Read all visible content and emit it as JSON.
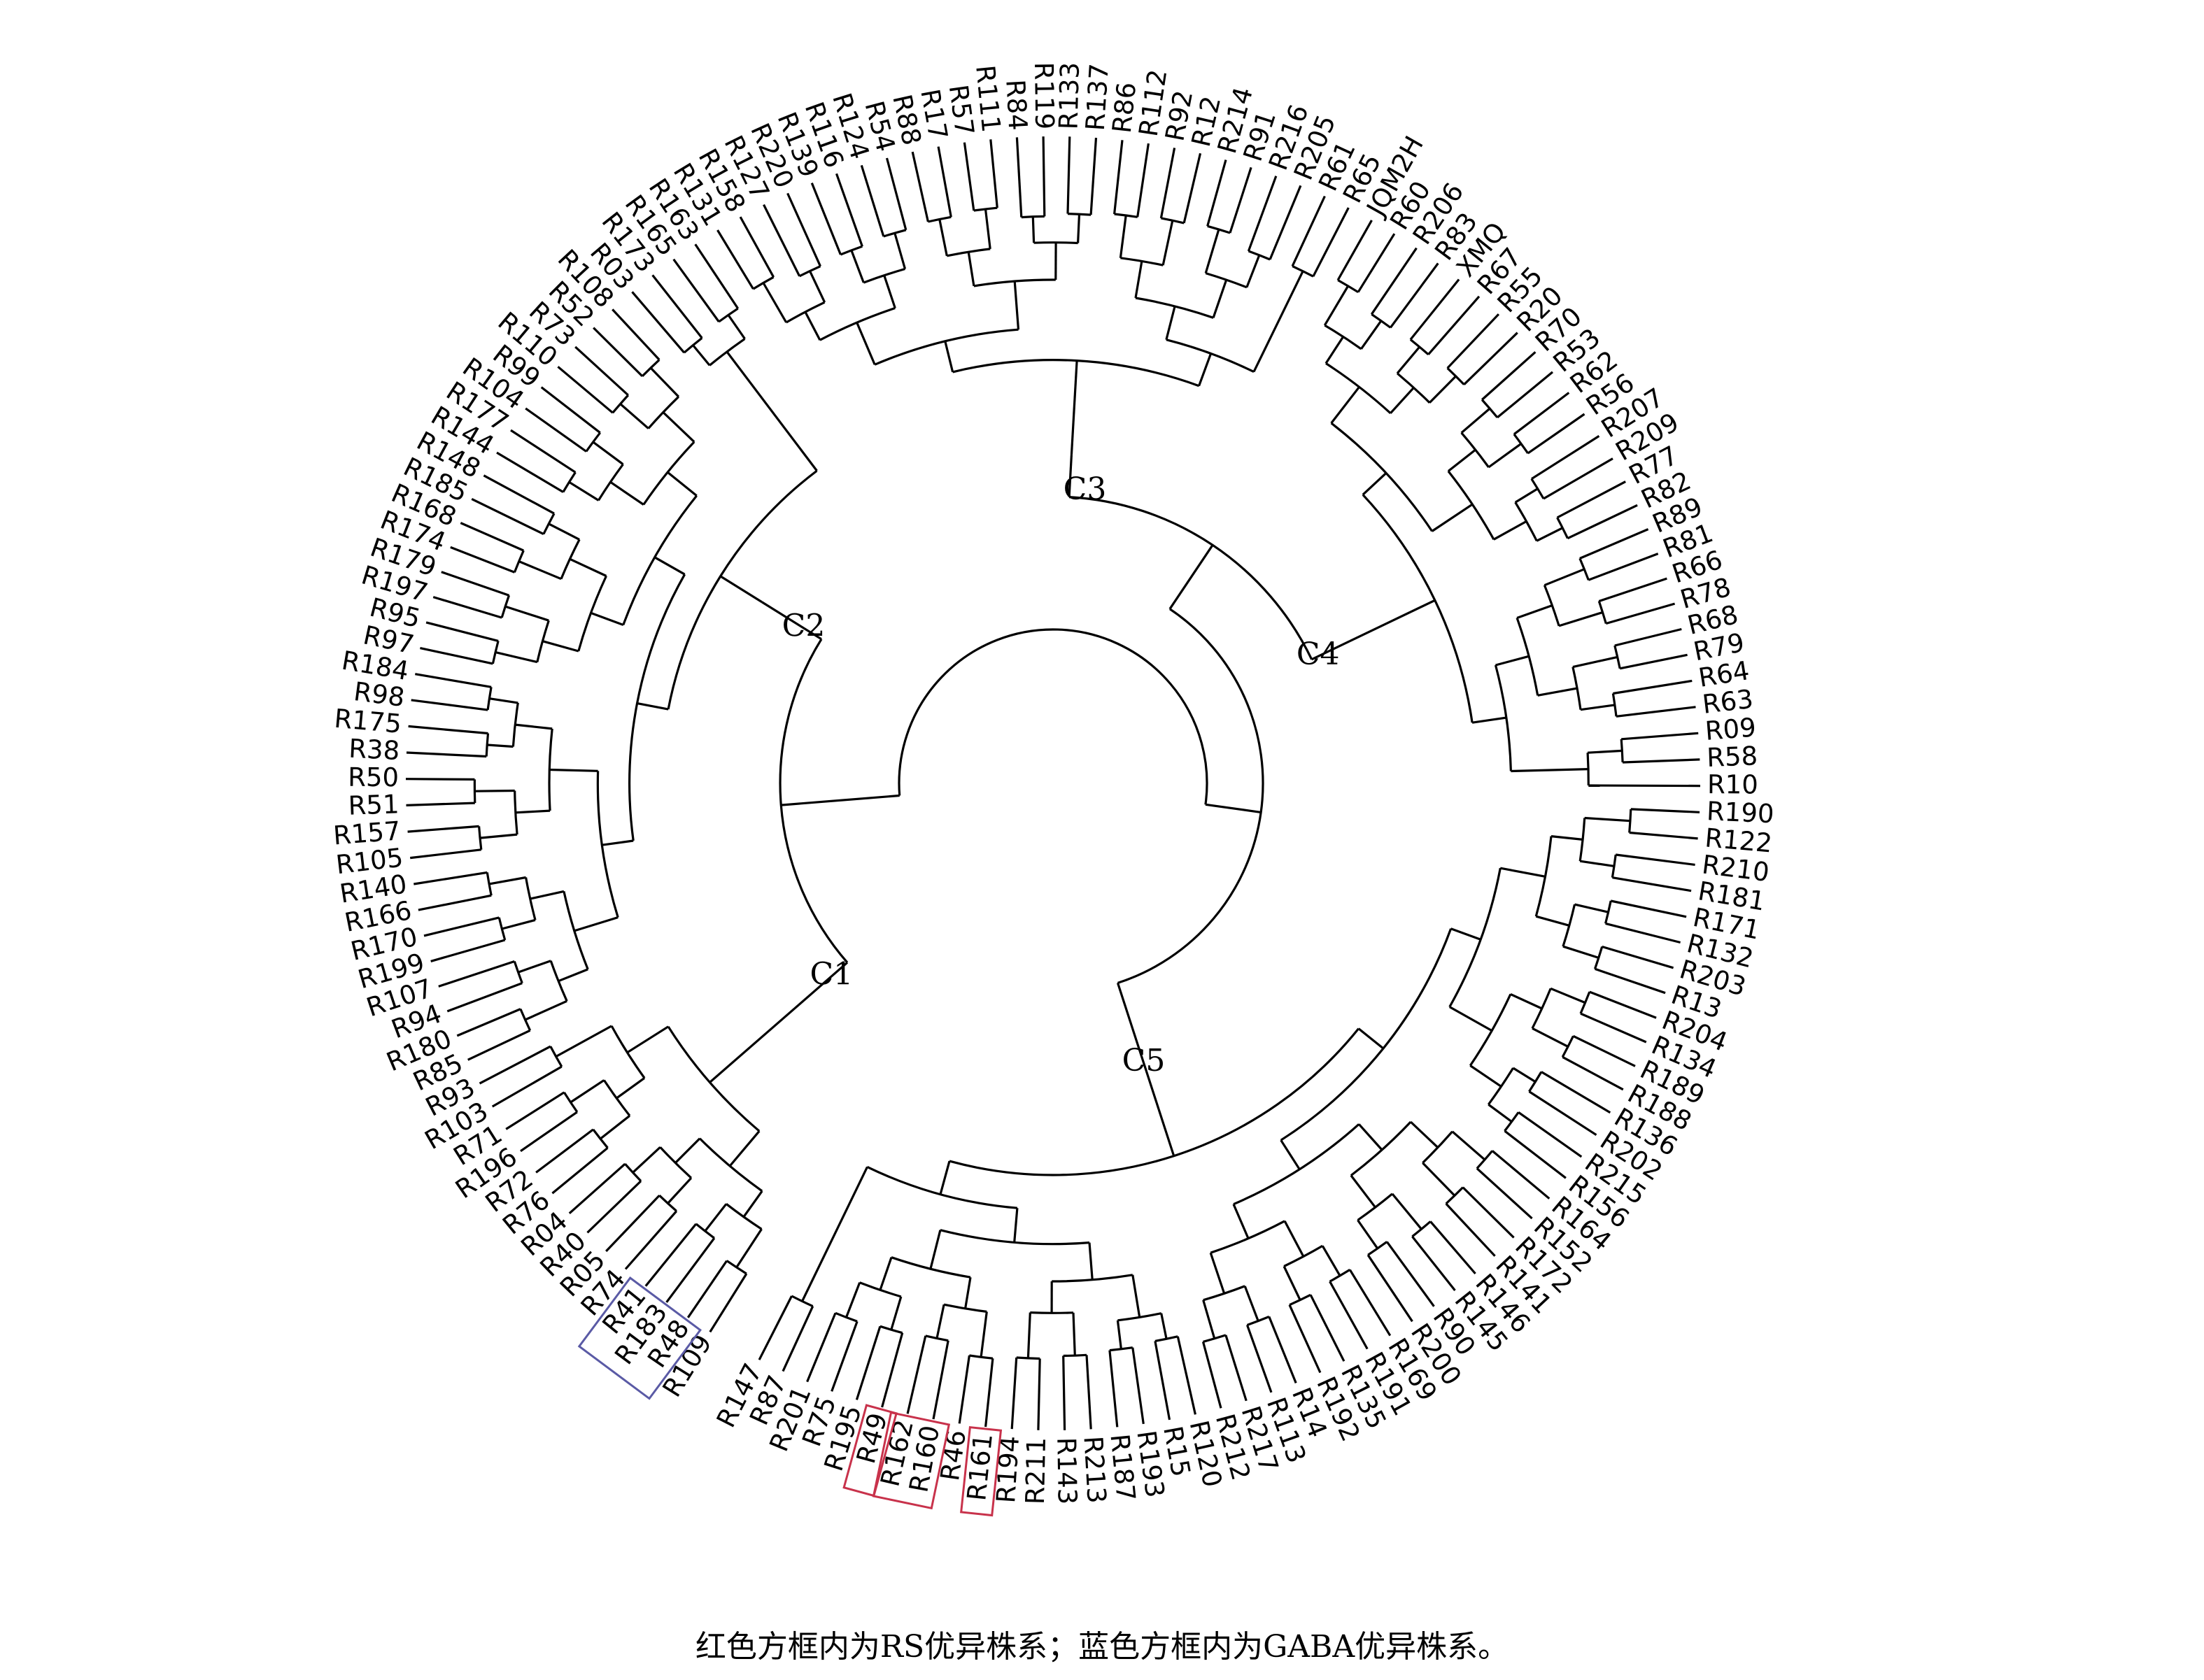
{
  "clusters": [
    {
      "name": "C1",
      "leaves": [
        "R109",
        "R48",
        "R183",
        "R41",
        "R74",
        "R05",
        "R40",
        "R04",
        "R76",
        "R72",
        "R196",
        "R71",
        "R103",
        "R93"
      ]
    },
    {
      "name": "C2",
      "leaves": [
        "R85",
        "R180",
        "R94",
        "R107",
        "R199",
        "R170",
        "R166",
        "R140",
        "R105",
        "R157",
        "R51",
        "R50",
        "R38",
        "R175",
        "R98",
        "R184",
        "R97",
        "R95",
        "R197",
        "R179",
        "R174",
        "R168",
        "R185",
        "R148",
        "R144",
        "R177",
        "R104",
        "R99",
        "R110",
        "R73",
        "R52",
        "R108",
        "R03",
        "R173",
        "R165",
        "R163"
      ]
    },
    {
      "name": "C3",
      "leaves": [
        "R131",
        "R158",
        "R127",
        "R220",
        "R139",
        "R116",
        "R124",
        "R54",
        "R88",
        "R17",
        "R57",
        "R111",
        "R84",
        "R119",
        "R133",
        "R137",
        "R86",
        "R112",
        "R92",
        "R12",
        "R214",
        "R91",
        "R216",
        "R205",
        "R61",
        "R65"
      ]
    },
    {
      "name": "C4",
      "leaves": [
        "JQM2H",
        "R60",
        "R206",
        "R83",
        "XMQ",
        "R67",
        "R55",
        "R20",
        "R70",
        "R53",
        "R62",
        "R56",
        "R207",
        "R209",
        "R77",
        "R82",
        "R89",
        "R81",
        "R66",
        "R78",
        "R68",
        "R79",
        "R64",
        "R63",
        "R09",
        "R58",
        "R10"
      ]
    },
    {
      "name": "C5",
      "leaves": [
        "R190",
        "R122",
        "R210",
        "R181",
        "R171",
        "R132",
        "R203",
        "R13",
        "R204",
        "R134",
        "R189",
        "R188",
        "R136",
        "R202",
        "R215",
        "R156",
        "R164",
        "R152",
        "R172",
        "R141",
        "R146",
        "R145",
        "R90",
        "R200",
        "R169",
        "R191",
        "R135",
        "R192",
        "R14",
        "R113",
        "R217",
        "R212",
        "R120",
        "R15",
        "R193",
        "R187",
        "R213",
        "R143",
        "R211",
        "R194",
        "R161",
        "R46",
        "R160",
        "R162",
        "R49",
        "R195",
        "R75",
        "R201",
        "R87",
        "R147"
      ]
    }
  ],
  "highlights": [
    {
      "color": "#c8324b",
      "leaves": [
        "R161"
      ]
    },
    {
      "color": "#c8324b",
      "leaves": [
        "R160",
        "R162"
      ]
    },
    {
      "color": "#c8324b",
      "leaves": [
        "R49"
      ]
    },
    {
      "color": "#5a5aa5",
      "leaves": [
        "R48",
        "R183",
        "R41"
      ]
    }
  ],
  "caption": "红色方框内为RS优异株系；蓝色方框内为GABA优异株系。"
}
